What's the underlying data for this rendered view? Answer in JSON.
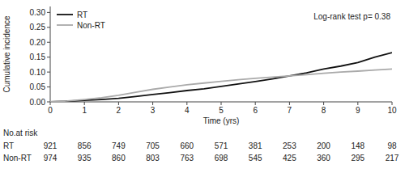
{
  "chart_data": {
    "type": "line",
    "x": [
      0,
      0.5,
      1,
      1.5,
      2,
      2.5,
      3,
      3.5,
      4,
      4.5,
      5,
      5.5,
      6,
      6.5,
      7,
      7.5,
      8,
      8.5,
      9,
      9.5,
      10
    ],
    "series": [
      {
        "name": "RT",
        "color": "#111111",
        "values": [
          0,
          0.002,
          0.005,
          0.008,
          0.012,
          0.018,
          0.025,
          0.031,
          0.038,
          0.044,
          0.052,
          0.06,
          0.068,
          0.077,
          0.087,
          0.097,
          0.11,
          0.12,
          0.132,
          0.15,
          0.165
        ]
      },
      {
        "name": "Non-RT",
        "color": "#aaaaaa",
        "values": [
          0,
          0.003,
          0.008,
          0.014,
          0.022,
          0.032,
          0.042,
          0.05,
          0.057,
          0.063,
          0.069,
          0.074,
          0.079,
          0.083,
          0.087,
          0.091,
          0.096,
          0.1,
          0.103,
          0.107,
          0.11
        ]
      }
    ],
    "x_label": "Time (yrs)",
    "y_label": "Cumulative incidence",
    "xlim": [
      0,
      10
    ],
    "ylim": [
      0,
      0.32
    ],
    "xticks": [
      0,
      1,
      2,
      3,
      4,
      5,
      6,
      7,
      8,
      9,
      10
    ],
    "yticks": [
      {
        "value": 0,
        "label": "0.00"
      },
      0.05,
      {
        "value": 0.1,
        "label": "0.10"
      },
      0.15,
      {
        "value": 0.2,
        "label": "0.20"
      },
      0.25,
      {
        "value": 0.3,
        "label": "0.30"
      }
    ],
    "annotations": [
      "Log-rank test p= 0.38"
    ],
    "legend": "upper left",
    "grid": false,
    "risk_table": {
      "title": "No.at risk",
      "x": [
        0,
        1,
        2,
        3,
        4,
        5,
        6,
        7,
        8,
        9,
        10
      ],
      "rows": [
        {
          "name": "RT",
          "values": [
            921,
            856,
            749,
            705,
            660,
            571,
            381,
            253,
            200,
            148,
            98
          ]
        },
        {
          "name": "Non-RT",
          "values": [
            974,
            935,
            860,
            803,
            763,
            698,
            545,
            425,
            360,
            295,
            217
          ]
        }
      ]
    }
  }
}
